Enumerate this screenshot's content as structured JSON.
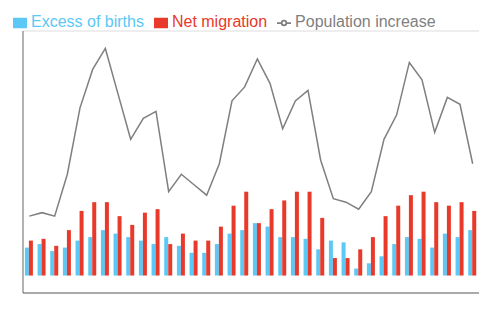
{
  "chart_data": {
    "type": "bar",
    "categories": [
      null,
      null,
      null,
      null,
      null,
      null,
      null,
      null,
      null,
      null,
      null,
      null,
      null,
      null,
      null,
      null,
      null,
      null,
      null,
      null,
      null,
      null,
      null,
      null,
      null,
      null,
      null,
      null,
      null,
      null,
      null,
      null,
      null,
      null,
      null,
      null
    ],
    "series": [
      {
        "name": "Excess of births",
        "type": "bar",
        "color": "#5bc8f5",
        "values": [
          800,
          900,
          700,
          800,
          1000,
          1100,
          1300,
          1200,
          1100,
          1000,
          900,
          1100,
          850,
          650,
          650,
          900,
          1200,
          1300,
          1500,
          1400,
          1100,
          1100,
          1050,
          750,
          1000,
          950,
          200,
          350,
          550,
          900,
          1100,
          1050,
          800,
          1200,
          1100,
          1300
        ]
      },
      {
        "name": "Net migration",
        "type": "bar",
        "color": "#e8392a",
        "values": [
          1000,
          1050,
          850,
          1300,
          1850,
          2100,
          2100,
          1700,
          1450,
          1800,
          1900,
          900,
          1200,
          1000,
          1000,
          1400,
          2000,
          2400,
          1500,
          1900,
          2150,
          2400,
          2400,
          1650,
          500,
          500,
          750,
          1100,
          1700,
          2000,
          2300,
          2400,
          2100,
          2000,
          2100,
          1850
        ]
      },
      {
        "name": "Population increase",
        "type": "line",
        "color": "#7f7f7f",
        "values": [
          1700,
          1800,
          1700,
          2900,
          4800,
          5900,
          6500,
          5200,
          3900,
          4500,
          4700,
          2400,
          2900,
          2600,
          2300,
          3200,
          5000,
          5400,
          6200,
          5500,
          4200,
          5000,
          5300,
          3300,
          2200,
          2100,
          1900,
          2400,
          3900,
          4600,
          6100,
          5600,
          4100,
          5100,
          4900,
          3200
        ]
      }
    ],
    "ylim": [
      -500,
      7000
    ],
    "yticks": [
      0,
      1000,
      2000,
      3000,
      4000,
      5000,
      6000,
      7000
    ],
    "grid": true,
    "legend": "upper left",
    "tick_labels": false
  }
}
